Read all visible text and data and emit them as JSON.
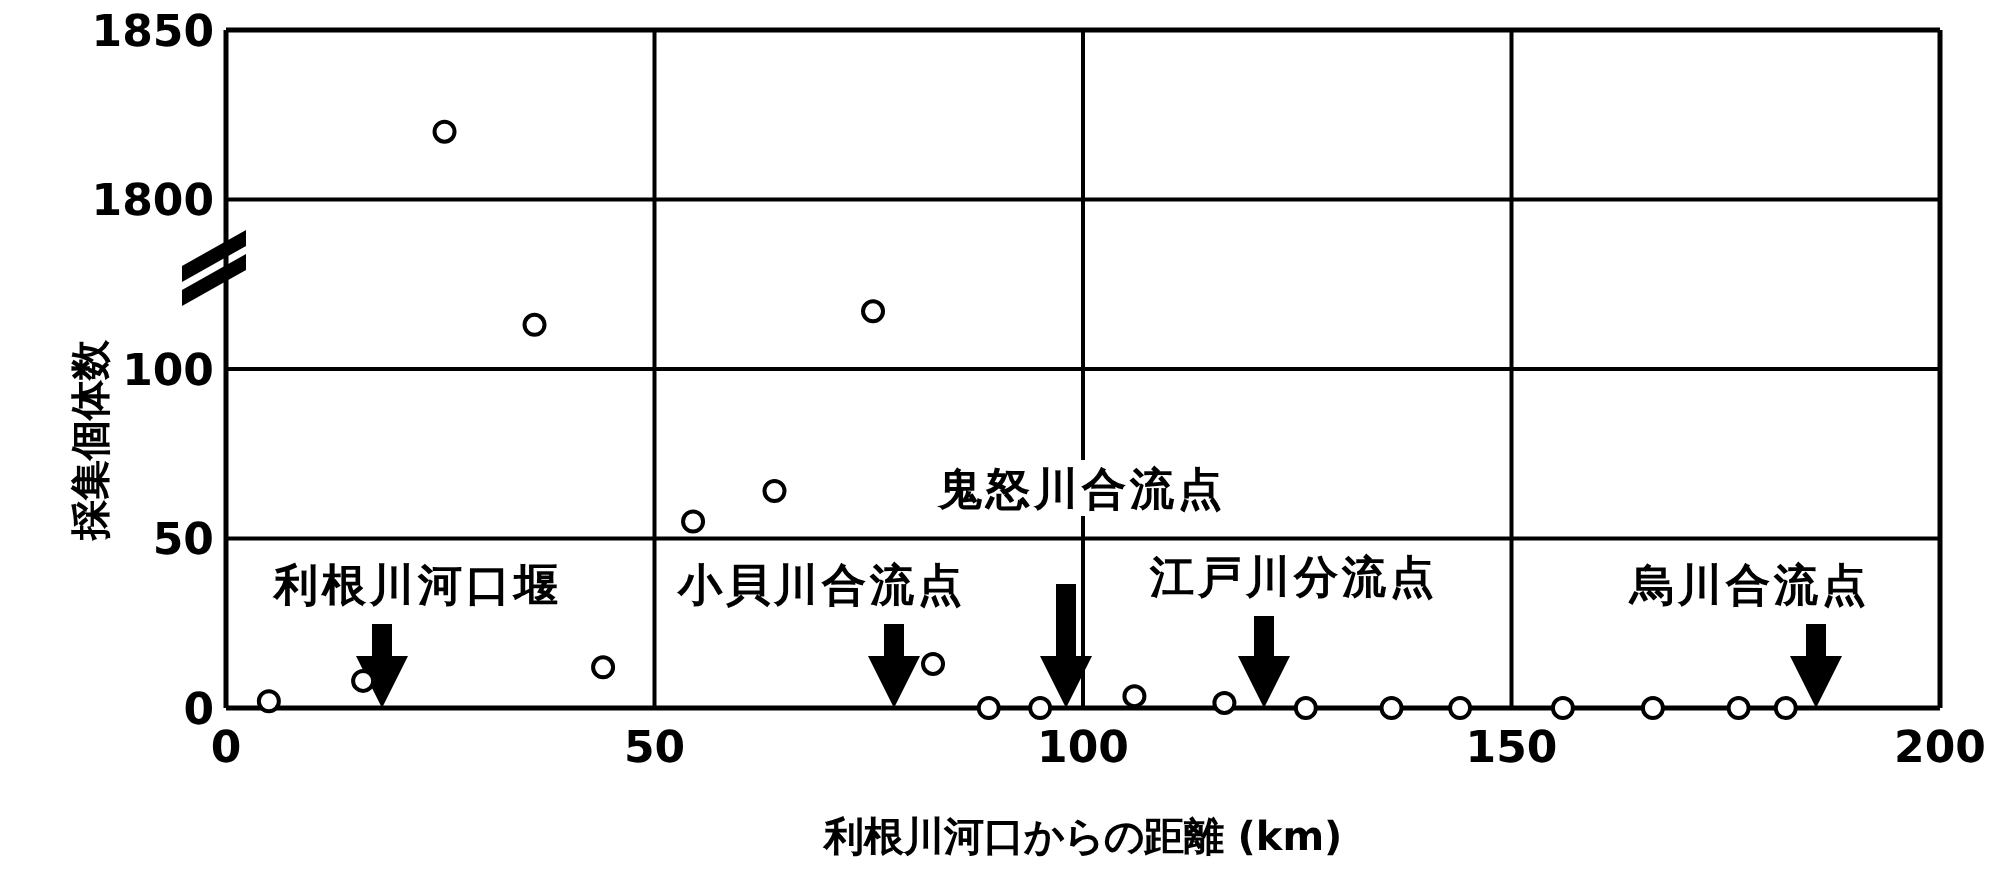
{
  "chart_data": [
    {
      "type": "scatter",
      "x": [
        25.5
      ],
      "values": [
        1820
      ],
      "color": "#000000",
      "marker": "circle",
      "xlim": [
        0,
        200
      ],
      "xticks": [
        0,
        50,
        100,
        150,
        200
      ],
      "ylim": [
        1778,
        1850
      ],
      "yticks": [
        1800,
        1850
      ],
      "grid": true,
      "tick_labels": "y"
    },
    {
      "type": "scatter",
      "x": [
        5,
        16,
        36,
        44,
        54.5,
        64,
        75.5,
        82.5,
        89,
        95,
        106,
        116.5,
        126,
        136,
        144,
        156,
        166.5,
        176.5,
        182
      ],
      "values": [
        2,
        8,
        113,
        12,
        55,
        64,
        117,
        13,
        0,
        0,
        3.5,
        1.5,
        0,
        0,
        0,
        0,
        0,
        0,
        0
      ],
      "color": "#000000",
      "marker": "circle",
      "xlim": [
        0,
        200
      ],
      "xticks": [
        0,
        50,
        100,
        150,
        200
      ],
      "ylim": [
        0,
        128
      ],
      "yticks": [
        0,
        50,
        100
      ],
      "grid": true,
      "xlabel": "利根川河口からの距離 (km)",
      "ylabel": "採集個体数",
      "annotations": [
        "利根川河口堰",
        "小貝川合流点",
        "鬼怒川合流点",
        "江戸川分流点",
        "烏川合流点"
      ]
    }
  ]
}
